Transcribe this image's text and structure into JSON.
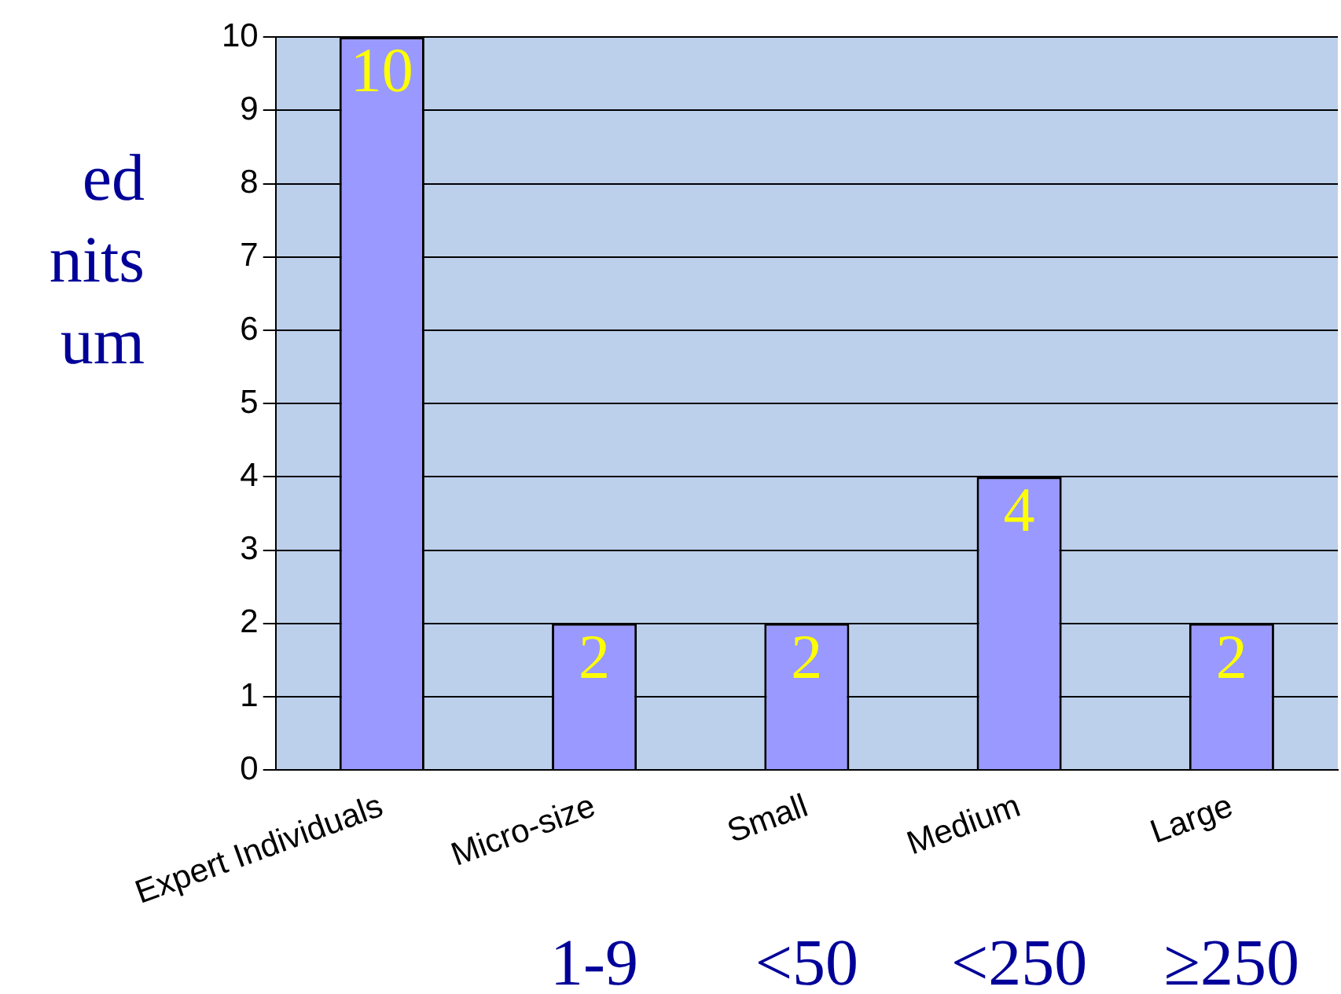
{
  "chart_data": {
    "type": "bar",
    "categories": [
      "Expert Individuals",
      "Micro-size",
      "Small",
      "Medium",
      "Large"
    ],
    "values": [
      10,
      2,
      2,
      4,
      2
    ],
    "color": "#9999ff",
    "ylim": [
      0,
      10
    ],
    "yticks": [
      0,
      1,
      2,
      3,
      4,
      5,
      6,
      7,
      8,
      9,
      10
    ],
    "grid": "y",
    "data_labels": true,
    "legend": false,
    "annotations": [
      "ed",
      "nits",
      "um",
      "1-9",
      "<50",
      "<250",
      "≥250"
    ]
  }
}
